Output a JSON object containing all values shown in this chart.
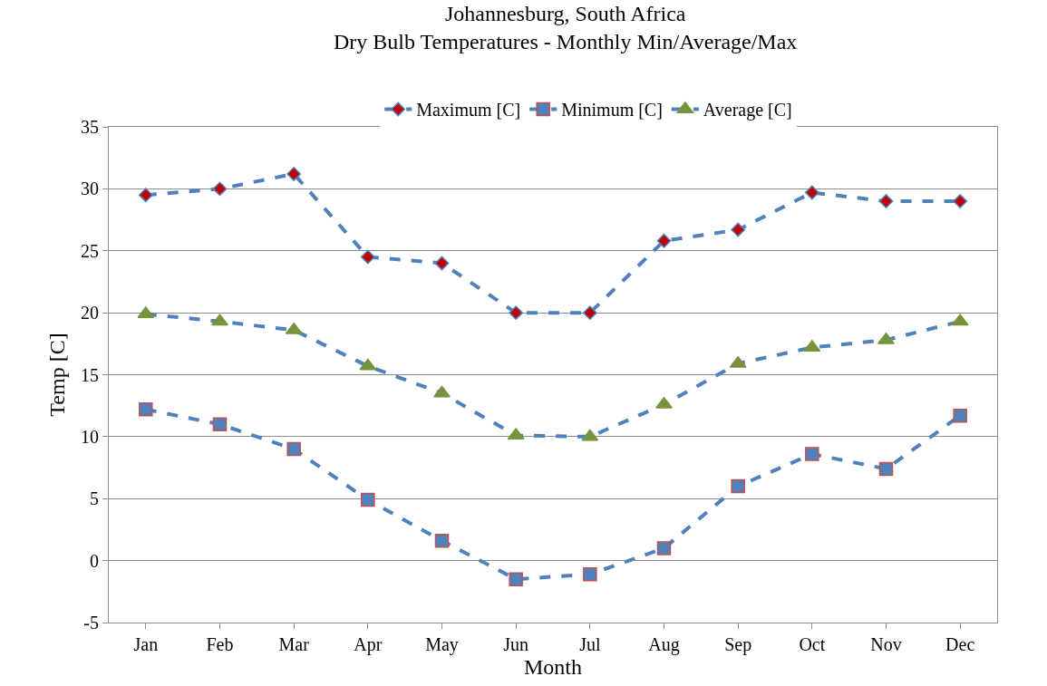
{
  "chart_data": {
    "type": "line",
    "title": "Johannesburg, South Africa",
    "subtitle": "Dry Bulb Temperatures - Monthly Min/Average/Max",
    "xlabel": "Month",
    "ylabel": "Temp [C]",
    "categories": [
      "Jan",
      "Feb",
      "Mar",
      "Apr",
      "May",
      "Jun",
      "Jul",
      "Aug",
      "Sep",
      "Oct",
      "Nov",
      "Dec"
    ],
    "series": [
      {
        "name": "Maximum [C]",
        "color": "#c00000",
        "marker": "diamond",
        "values": [
          29.5,
          30.0,
          31.2,
          24.5,
          24.0,
          20.0,
          20.0,
          25.8,
          26.7,
          29.7,
          29.0,
          29.0
        ]
      },
      {
        "name": "Minimum [C]",
        "color": "#4f81bd",
        "marker": "square",
        "values": [
          12.2,
          11.0,
          9.0,
          4.9,
          1.6,
          -1.5,
          -1.1,
          1.0,
          6.0,
          8.6,
          7.4,
          11.7
        ]
      },
      {
        "name": "Average [C]",
        "color": "#77933c",
        "marker": "triangle",
        "values": [
          19.9,
          19.3,
          18.6,
          15.7,
          13.5,
          10.1,
          10.0,
          12.6,
          15.9,
          17.2,
          17.8,
          19.3
        ]
      }
    ],
    "ylim": [
      -5,
      35
    ],
    "yticks": [
      -5,
      0,
      5,
      10,
      15,
      20,
      25,
      30,
      35
    ],
    "grid": "y",
    "legend": "top",
    "line_style": "dashed"
  }
}
